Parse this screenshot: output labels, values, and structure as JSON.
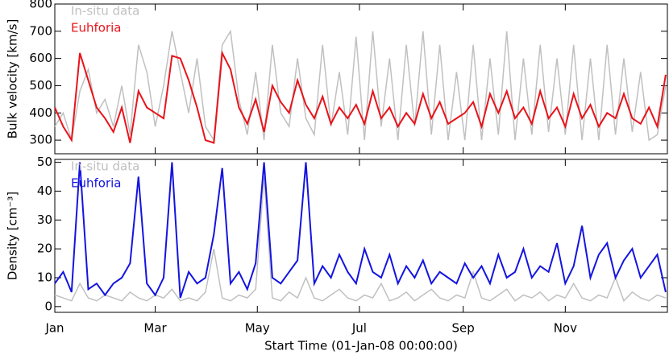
{
  "chart_data": [
    {
      "type": "line",
      "y_label": "Bulk velocity [km/s]",
      "x": [
        0,
        5,
        10,
        15,
        20,
        25,
        30,
        35,
        40,
        45,
        50,
        55,
        60,
        65,
        70,
        75,
        80,
        85,
        90,
        95,
        100,
        105,
        110,
        115,
        120,
        125,
        130,
        135,
        140,
        145,
        150,
        155,
        160,
        165,
        170,
        175,
        180,
        185,
        190,
        195,
        200,
        205,
        210,
        215,
        220,
        225,
        230,
        235,
        240,
        245,
        250,
        255,
        260,
        265,
        270,
        275,
        280,
        285,
        290,
        295,
        300,
        305,
        310,
        315,
        320,
        325,
        330,
        335,
        340,
        345,
        350,
        355,
        360,
        365
      ],
      "xlim": [
        0,
        366
      ],
      "xticks": [
        {
          "value": 0,
          "label": "Jan"
        },
        {
          "value": 60,
          "label": "Mar"
        },
        {
          "value": 121,
          "label": "May"
        },
        {
          "value": 182,
          "label": "Jul"
        },
        {
          "value": 244,
          "label": "Sep"
        },
        {
          "value": 305,
          "label": "Nov"
        }
      ],
      "ylim": [
        250,
        800
      ],
      "yticks": [
        300,
        400,
        500,
        600,
        700,
        800
      ],
      "series": [
        {
          "name": "In-situ data",
          "color": "#c0c0c0",
          "values": [
            350,
            400,
            300,
            480,
            560,
            400,
            450,
            350,
            500,
            320,
            650,
            550,
            350,
            500,
            700,
            550,
            400,
            600,
            350,
            300,
            650,
            700,
            450,
            320,
            550,
            300,
            650,
            400,
            350,
            600,
            380,
            320,
            650,
            350,
            550,
            320,
            680,
            300,
            700,
            350,
            600,
            300,
            650,
            350,
            700,
            320,
            650,
            300,
            550,
            300,
            650,
            300,
            600,
            320,
            700,
            300,
            600,
            320,
            650,
            330,
            600,
            320,
            650,
            300,
            600,
            300,
            650,
            320,
            600,
            330,
            550,
            300,
            320,
            500
          ]
        },
        {
          "name": "Euhforia",
          "color": "#e8141b",
          "values": [
            420,
            350,
            300,
            620,
            520,
            420,
            380,
            330,
            420,
            290,
            480,
            420,
            400,
            380,
            610,
            600,
            520,
            420,
            300,
            290,
            620,
            560,
            420,
            360,
            450,
            330,
            500,
            440,
            400,
            520,
            430,
            380,
            460,
            360,
            420,
            380,
            430,
            360,
            480,
            380,
            420,
            350,
            400,
            360,
            470,
            380,
            440,
            360,
            380,
            400,
            440,
            350,
            470,
            400,
            480,
            380,
            420,
            360,
            480,
            380,
            420,
            350,
            470,
            380,
            430,
            350,
            400,
            380,
            470,
            380,
            360,
            420,
            350,
            540
          ]
        }
      ]
    },
    {
      "type": "line",
      "y_label": "Density [cm⁻³]",
      "x_label": "Start Time (01-Jan-08 00:00:00)",
      "x": [
        0,
        5,
        10,
        15,
        20,
        25,
        30,
        35,
        40,
        45,
        50,
        55,
        60,
        65,
        70,
        75,
        80,
        85,
        90,
        95,
        100,
        105,
        110,
        115,
        120,
        125,
        130,
        135,
        140,
        145,
        150,
        155,
        160,
        165,
        170,
        175,
        180,
        185,
        190,
        195,
        200,
        205,
        210,
        215,
        220,
        225,
        230,
        235,
        240,
        245,
        250,
        255,
        260,
        265,
        270,
        275,
        280,
        285,
        290,
        295,
        300,
        305,
        310,
        315,
        320,
        325,
        330,
        335,
        340,
        345,
        350,
        355,
        360,
        365
      ],
      "xlim": [
        0,
        366
      ],
      "xticks": [
        {
          "value": 0,
          "label": "Jan"
        },
        {
          "value": 60,
          "label": "Mar"
        },
        {
          "value": 121,
          "label": "May"
        },
        {
          "value": 182,
          "label": "Jul"
        },
        {
          "value": 244,
          "label": "Sep"
        },
        {
          "value": 305,
          "label": "Nov"
        }
      ],
      "ylim": [
        -2,
        51
      ],
      "yticks": [
        0,
        10,
        20,
        30,
        40,
        50
      ],
      "series": [
        {
          "name": "In-situ data",
          "color": "#c0c0c0",
          "values": [
            4,
            3,
            2,
            8,
            3,
            2,
            4,
            3,
            2,
            5,
            3,
            2,
            4,
            3,
            6,
            2,
            3,
            2,
            5,
            20,
            3,
            2,
            4,
            3,
            6,
            45,
            3,
            2,
            5,
            3,
            10,
            3,
            2,
            4,
            6,
            3,
            2,
            4,
            3,
            8,
            2,
            3,
            5,
            2,
            4,
            6,
            3,
            2,
            4,
            3,
            12,
            3,
            2,
            4,
            6,
            2,
            4,
            3,
            5,
            2,
            4,
            3,
            8,
            3,
            2,
            4,
            3,
            10,
            2,
            5,
            3,
            2,
            4,
            3
          ]
        },
        {
          "name": "Euhforia",
          "color": "#1414e0",
          "values": [
            8,
            12,
            5,
            50,
            6,
            8,
            4,
            8,
            10,
            15,
            45,
            8,
            4,
            10,
            50,
            3,
            12,
            8,
            10,
            25,
            48,
            8,
            12,
            6,
            15,
            50,
            10,
            8,
            12,
            16,
            50,
            8,
            14,
            10,
            18,
            12,
            8,
            20,
            12,
            10,
            18,
            8,
            14,
            10,
            16,
            8,
            12,
            10,
            8,
            15,
            10,
            14,
            8,
            18,
            10,
            12,
            20,
            10,
            14,
            12,
            22,
            8,
            14,
            28,
            10,
            18,
            22,
            10,
            16,
            20,
            10,
            14,
            18,
            5
          ]
        }
      ]
    }
  ]
}
